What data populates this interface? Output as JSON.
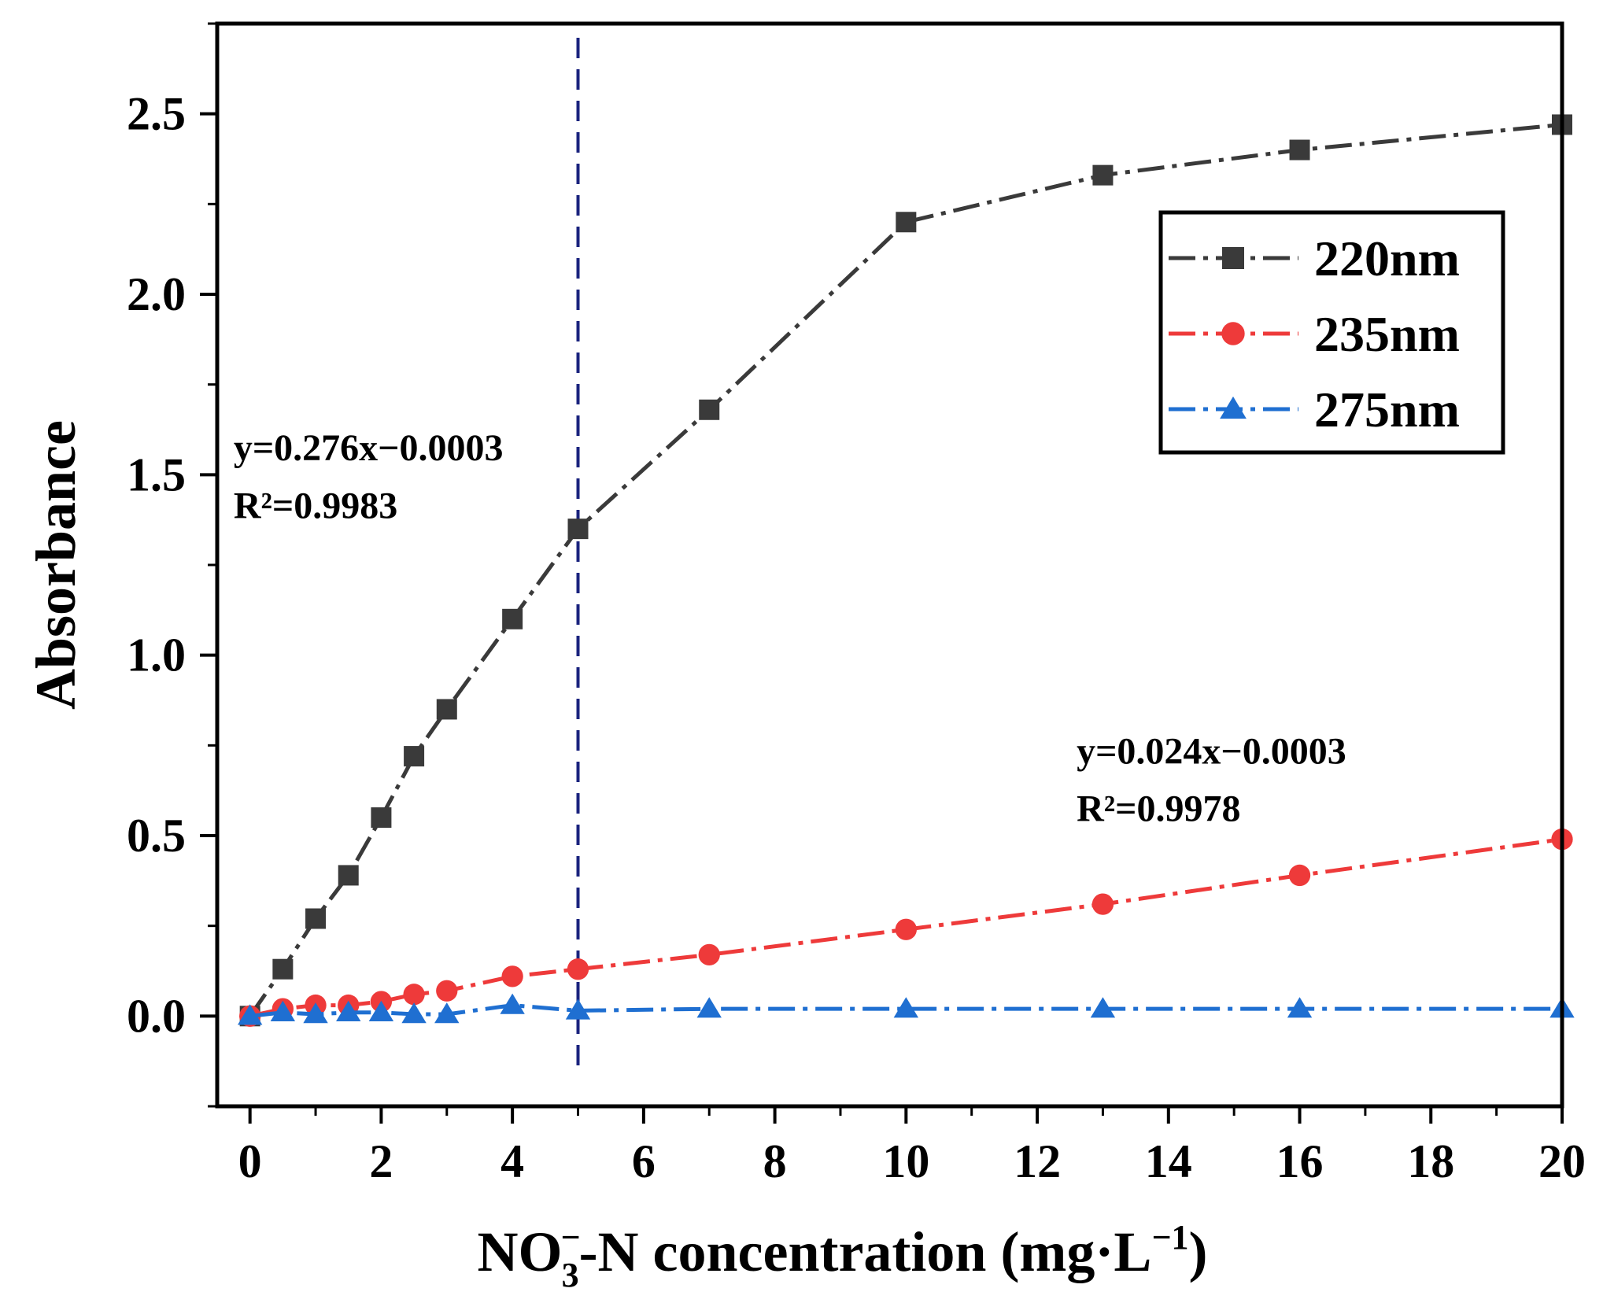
{
  "chart_data": {
    "type": "line",
    "title": "",
    "xlabel": {
      "main": "NO",
      "subscript": "3",
      "superscript": "−",
      "rest": "-N concentration (mg·L",
      "unit_superscript": "−1",
      "closing": ")"
    },
    "ylabel": "Absorbance",
    "xlim": [
      -0.5,
      20
    ],
    "ylim": [
      -0.25,
      2.75
    ],
    "xticks": [
      0,
      2,
      4,
      6,
      8,
      10,
      12,
      14,
      16,
      18,
      20
    ],
    "xtick_labels": [
      "0",
      "2",
      "4",
      "6",
      "8",
      "10",
      "12",
      "14",
      "16",
      "18",
      "20"
    ],
    "yticks": [
      0.0,
      0.5,
      1.0,
      1.5,
      2.0,
      2.5
    ],
    "ytick_labels": [
      "0.0",
      "0.5",
      "1.0",
      "1.5",
      "2.0",
      "2.5"
    ],
    "x": [
      0,
      0.5,
      1,
      1.5,
      2,
      2.5,
      3,
      4,
      5,
      7,
      10,
      13,
      16,
      20
    ],
    "series": [
      {
        "name": "220nm",
        "color": "#3a3a3a",
        "marker": "square",
        "values": [
          0.0,
          0.13,
          0.27,
          0.39,
          0.55,
          0.72,
          0.85,
          1.1,
          1.35,
          1.68,
          2.2,
          2.33,
          2.4,
          2.47
        ]
      },
      {
        "name": "235nm",
        "color": "#ee3a3a",
        "marker": "circle",
        "values": [
          0.0,
          0.02,
          0.03,
          0.03,
          0.04,
          0.06,
          0.07,
          0.11,
          0.13,
          0.17,
          0.24,
          0.31,
          0.39,
          0.49
        ]
      },
      {
        "name": "275nm",
        "color": "#1f6fd1",
        "marker": "triangle",
        "values": [
          0.0,
          0.01,
          0.005,
          0.01,
          0.01,
          0.005,
          0.005,
          0.03,
          0.015,
          0.02,
          0.02,
          0.02,
          0.02,
          0.02
        ]
      }
    ],
    "reference_line": {
      "x": 5,
      "color": "#1a237e",
      "style": "dashed"
    },
    "annotations": [
      {
        "text": "y=0.276x−0.0003",
        "x": -0.25,
        "y": 1.54
      },
      {
        "text": "R²=0.9983",
        "x": -0.25,
        "y": 1.38
      },
      {
        "text": "y=0.024x−0.0003",
        "x": 12.6,
        "y": 0.7
      },
      {
        "text": "R²=0.9978",
        "x": 12.6,
        "y": 0.54
      }
    ],
    "legend": {
      "placement": "top-right",
      "entries": [
        "220nm",
        "235nm",
        "275nm"
      ]
    }
  }
}
